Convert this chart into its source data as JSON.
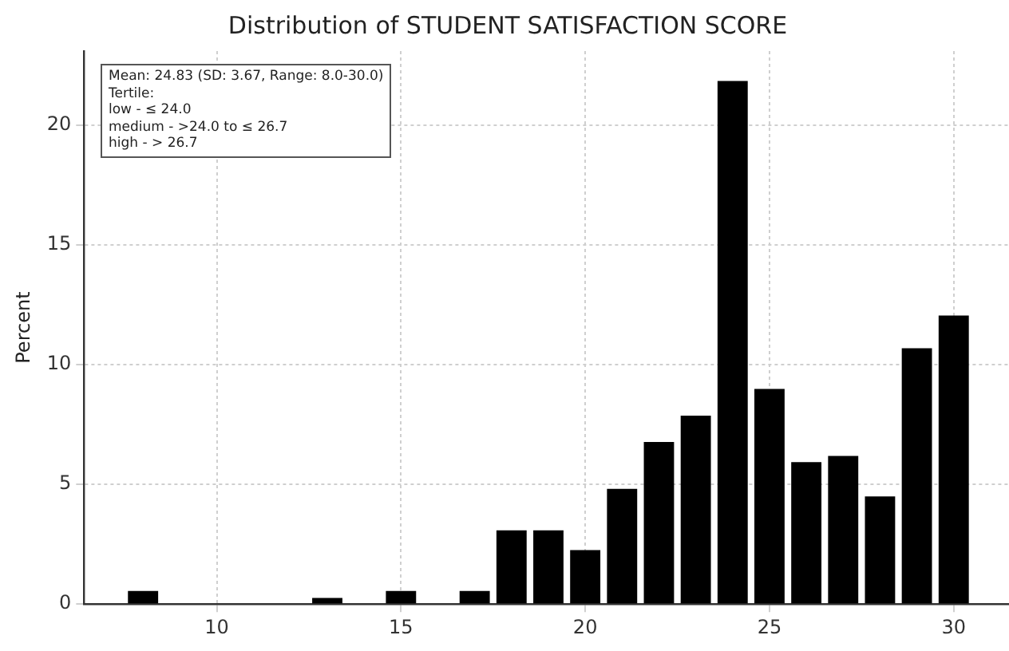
{
  "chart_data": {
    "type": "histogram",
    "title": "Distribution of STUDENT SATISFACTION SCORE",
    "ylabel": "Percent",
    "bins": [
      7.5,
      8.5,
      9.5,
      10.5,
      11.5,
      12.5,
      13.5,
      14.5,
      15.5,
      16.5,
      17.5,
      18.5,
      19.5,
      20.5,
      21.5,
      22.5,
      23.5,
      24.5,
      25.5,
      26.5,
      27.5,
      28.5,
      29.5,
      30.5
    ],
    "values": [
      0.55,
      0,
      0,
      0,
      0,
      0.26,
      0,
      0.55,
      0,
      0.55,
      3.08,
      3.08,
      2.26,
      4.81,
      6.77,
      7.87,
      21.85,
      8.99,
      5.93,
      6.19,
      4.5,
      10.69,
      12.05
    ],
    "color": "#000000",
    "xlim": [
      6.4,
      31.5
    ],
    "xticks": [
      10,
      15,
      20,
      25,
      30
    ],
    "ylim": [
      0,
      23.1
    ],
    "yticks": [
      0,
      5,
      10,
      15,
      20
    ],
    "grid": true,
    "legend": false,
    "annotations": [
      "Mean: 24.83 (SD: 3.67, Range: 8.0-30.0)",
      "Tertile:",
      "low - ≤ 24.0",
      "medium - >24.0 to ≤ 26.7",
      "high - > 26.7"
    ]
  }
}
